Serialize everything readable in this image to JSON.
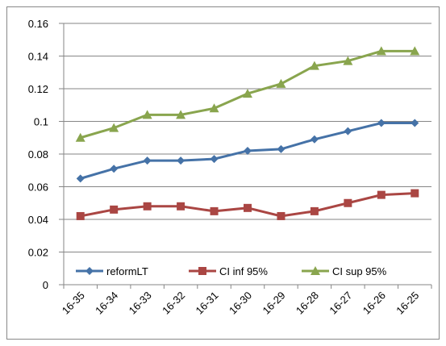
{
  "chart_data": {
    "type": "line",
    "categories": [
      "16-35",
      "16-34",
      "16-33",
      "16-32",
      "16-31",
      "16-30",
      "16-29",
      "16-28",
      "16-27",
      "16-26",
      "16-25"
    ],
    "series": [
      {
        "name": "reformLT",
        "color": "#4572a7",
        "marker": "diamond",
        "values": [
          0.065,
          0.071,
          0.076,
          0.076,
          0.077,
          0.082,
          0.083,
          0.089,
          0.094,
          0.099,
          0.099
        ]
      },
      {
        "name": "CI inf 95%",
        "color": "#aa4643",
        "marker": "square",
        "values": [
          0.042,
          0.046,
          0.048,
          0.048,
          0.045,
          0.047,
          0.042,
          0.045,
          0.05,
          0.055,
          0.056
        ]
      },
      {
        "name": "CI sup 95%",
        "color": "#89a54e",
        "marker": "triangle",
        "values": [
          0.09,
          0.096,
          0.104,
          0.104,
          0.108,
          0.117,
          0.123,
          0.134,
          0.137,
          0.143,
          0.143
        ]
      }
    ],
    "ylim": [
      0,
      0.16
    ],
    "yticks": [
      0,
      0.02,
      0.04,
      0.06,
      0.08,
      0.1,
      0.12,
      0.14,
      0.16
    ],
    "grid": true,
    "legend": "bottom-left"
  }
}
